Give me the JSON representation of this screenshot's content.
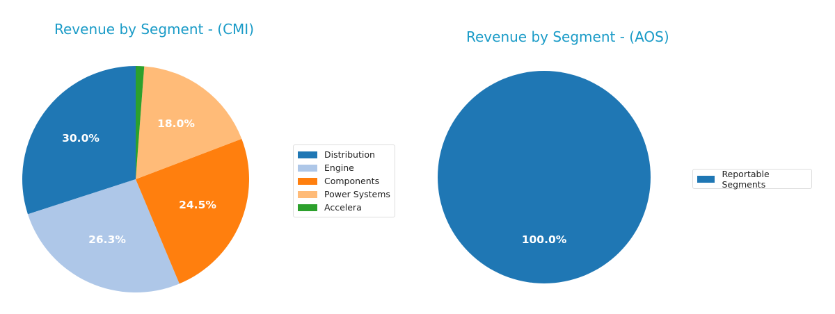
{
  "chart_data": [
    {
      "type": "pie",
      "title": "Revenue by Segment - (CMI)",
      "categories": [
        "Distribution",
        "Engine",
        "Components",
        "Power Systems",
        "Accelera"
      ],
      "values": [
        30.0,
        26.3,
        24.5,
        18.0,
        1.2
      ],
      "labels": [
        "30.0%",
        "26.3%",
        "24.5%",
        "18.0%",
        ""
      ],
      "colors": [
        "#1f77b4",
        "#aec7e8",
        "#ff7f0e",
        "#ffbb78",
        "#2ca02c"
      ],
      "start_angle": 90,
      "direction": "counterclockwise",
      "legend_position": "right"
    },
    {
      "type": "pie",
      "title": "Revenue by Segment - (AOS)",
      "categories": [
        "Reportable Segments"
      ],
      "values": [
        100.0
      ],
      "labels": [
        "100.0%"
      ],
      "colors": [
        "#1f77b4"
      ],
      "start_angle": 90,
      "direction": "counterclockwise",
      "legend_position": "right"
    }
  ],
  "left": {
    "title": "Revenue by Segment - (CMI)",
    "labels": [
      "30.0%",
      "26.3%",
      "24.5%",
      "18.0%"
    ],
    "legend": [
      "Distribution",
      "Engine",
      "Components",
      "Power Systems",
      "Accelera"
    ]
  },
  "right": {
    "title": "Revenue by Segment - (AOS)",
    "labels": [
      "100.0%"
    ],
    "legend": [
      "Reportable Segments"
    ]
  }
}
